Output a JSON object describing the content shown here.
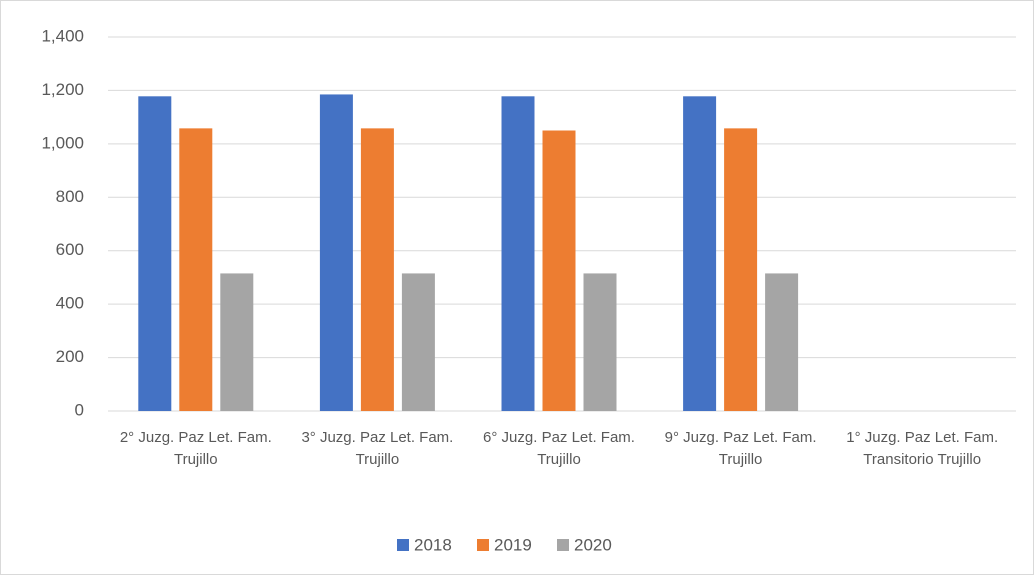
{
  "chart_data": {
    "type": "bar",
    "categories": [
      "2° Juzg. Paz Let. Fam. Trujillo",
      "3° Juzg. Paz Let. Fam. Trujillo",
      "6° Juzg. Paz Let. Fam. Trujillo",
      "9° Juzg. Paz Let. Fam. Trujillo",
      "1° Juzg. Paz Let. Fam. Transitorio Trujillo"
    ],
    "series": [
      {
        "name": "2018",
        "color": "#4472c4",
        "values": [
          1178,
          1185,
          1178,
          1178,
          null
        ]
      },
      {
        "name": "2019",
        "color": "#ed7d31",
        "values": [
          1058,
          1058,
          1050,
          1058,
          null
        ]
      },
      {
        "name": "2020",
        "color": "#a5a5a5",
        "values": [
          515,
          515,
          515,
          515,
          null
        ]
      }
    ],
    "ylim": [
      0,
      1400
    ],
    "yticks": [
      0,
      200,
      400,
      600,
      800,
      {
        "value": 1000,
        "label": "1,000"
      },
      {
        "value": 1200,
        "label": "1,200"
      },
      {
        "value": 1400,
        "label": "1,400"
      }
    ],
    "grid": true,
    "legend": "bottom"
  }
}
